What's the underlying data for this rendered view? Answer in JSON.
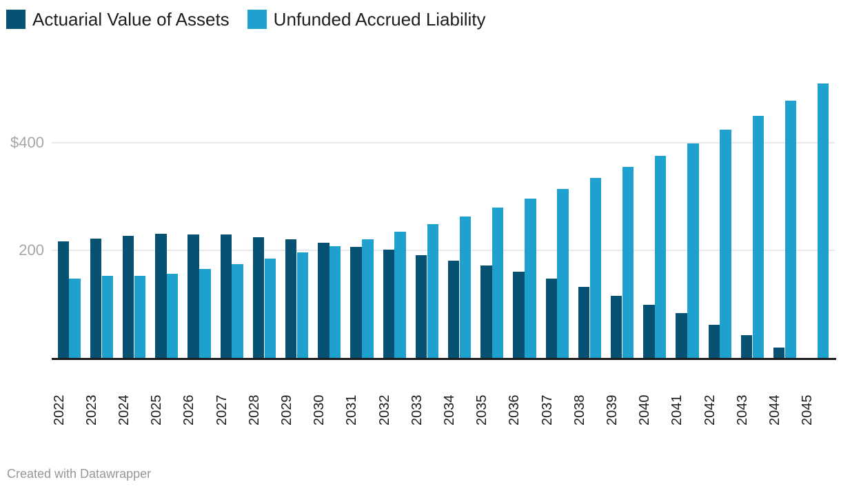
{
  "legend": {
    "items": [
      {
        "label": "Actuarial Value of Assets",
        "color": "#075172"
      },
      {
        "label": "Unfunded Accrued Liability",
        "color": "#1FA1CF"
      }
    ]
  },
  "chart_data": {
    "type": "bar",
    "title": "",
    "categories": [
      "2022",
      "2023",
      "2024",
      "2025",
      "2026",
      "2027",
      "2028",
      "2029",
      "2030",
      "2031",
      "2032",
      "2033",
      "2034",
      "2035",
      "2036",
      "2037",
      "2038",
      "2039",
      "2040",
      "2041",
      "2042",
      "2043",
      "2044",
      "2045"
    ],
    "series": [
      {
        "name": "Actuarial Value of Assets",
        "color": "#075172",
        "values": [
          217,
          222,
          227,
          231,
          230,
          229,
          225,
          220,
          214,
          207,
          201,
          191,
          181,
          172,
          160,
          147,
          132,
          116,
          99,
          83,
          62,
          42,
          19,
          0
        ]
      },
      {
        "name": "Unfunded Accrued Liability",
        "color": "#1FA1CF",
        "values": [
          147,
          153,
          153,
          157,
          165,
          175,
          185,
          196,
          208,
          221,
          234,
          249,
          263,
          279,
          296,
          314,
          334,
          355,
          376,
          399,
          425,
          450,
          478,
          510
        ]
      }
    ],
    "xlabel": "",
    "ylabel": "",
    "ylim": [
      0,
      520
    ],
    "yticks": [
      {
        "value": 200,
        "label": "200"
      },
      {
        "value": 400,
        "label": "$400"
      }
    ],
    "grid": "horizontal",
    "legend_position": "top-left",
    "bar_layout": "grouped"
  },
  "footer": {
    "credit": "Created with Datawrapper"
  }
}
